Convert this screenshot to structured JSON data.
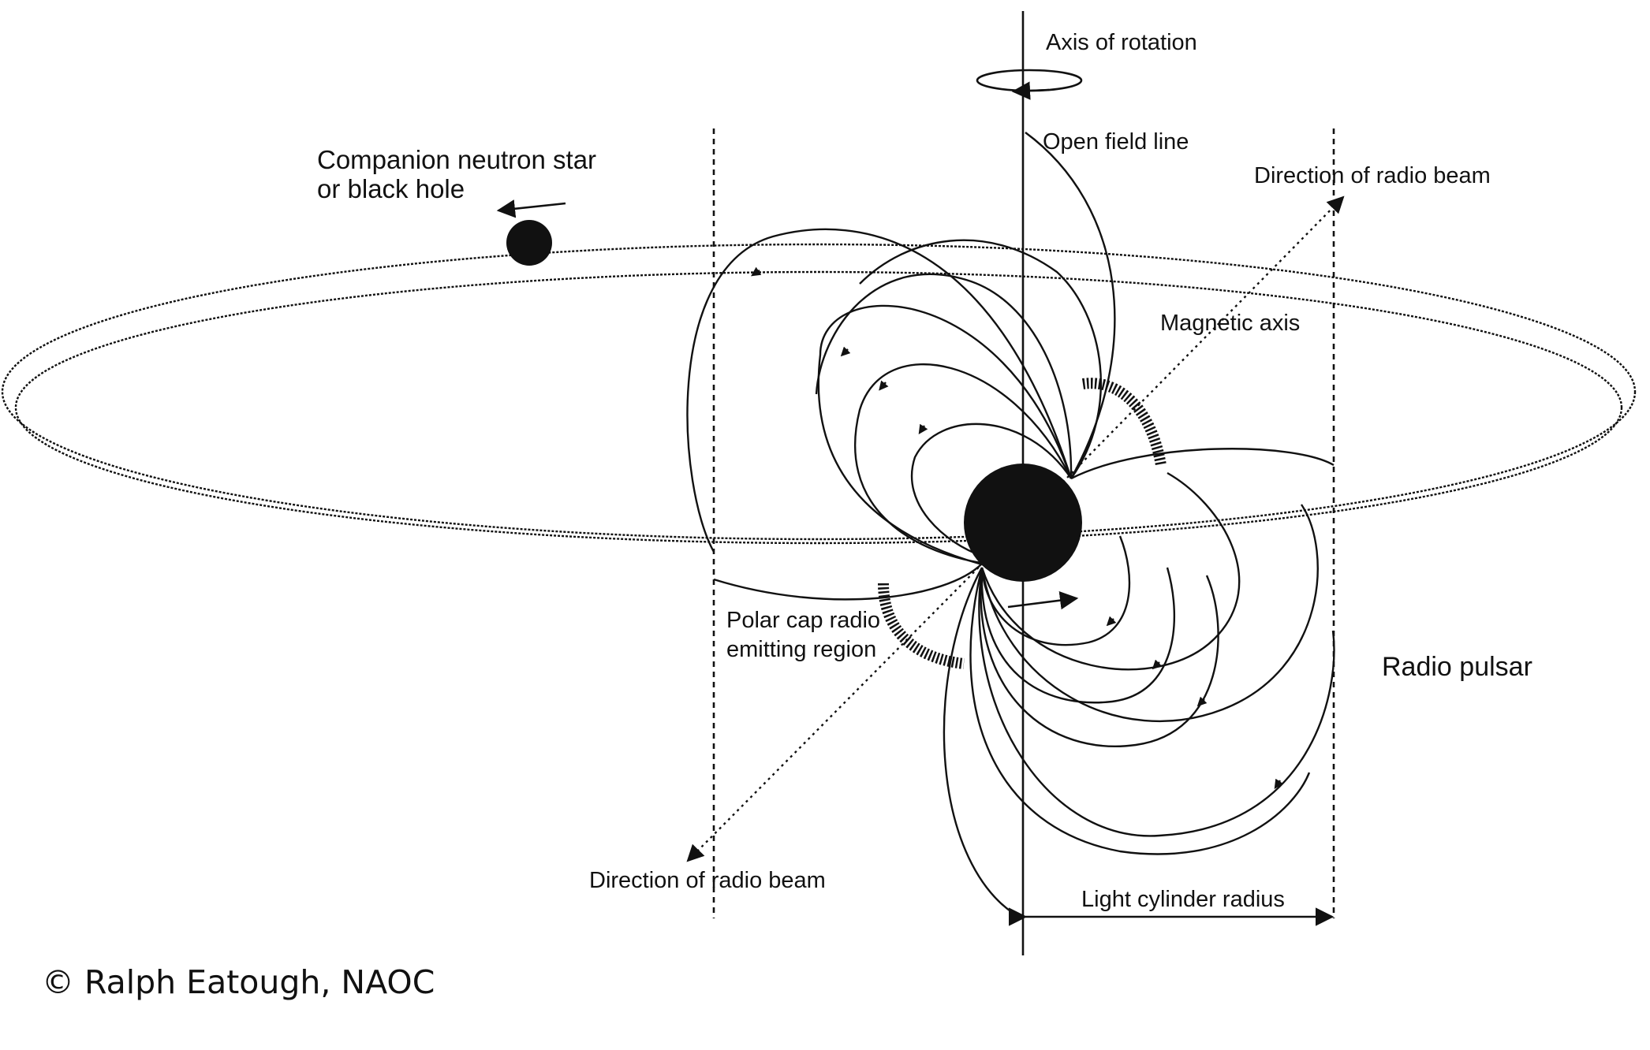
{
  "labels": {
    "axis_of_rotation": "Axis of rotation",
    "open_field_line": "Open field line",
    "direction_of_radio_beam_top": "Direction of radio beam",
    "magnetic_axis": "Magnetic axis",
    "companion_line1": "Companion neutron star",
    "companion_line2": "or black hole",
    "polar_cap_line1": "Polar cap radio",
    "polar_cap_line2": "emitting region",
    "radio_pulsar": "Radio pulsar",
    "direction_of_radio_beam_bottom": "Direction of radio beam",
    "light_cylinder_radius": "Light cylinder radius"
  },
  "credit": "© Ralph Eatough, NAOC",
  "colors": {
    "ink": "#111111",
    "background": "#ffffff"
  }
}
